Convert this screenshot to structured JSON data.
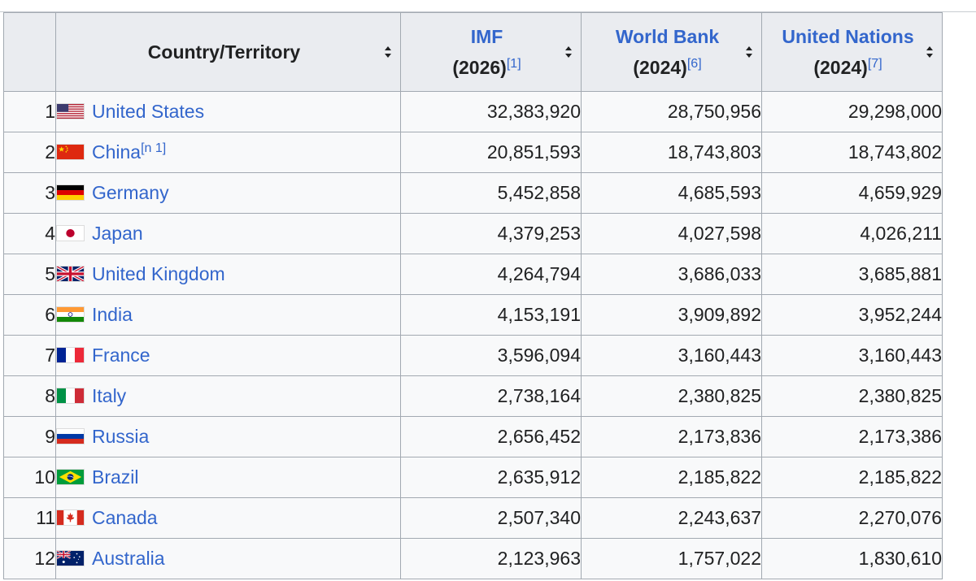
{
  "table": {
    "headers": {
      "country": "Country/Territory",
      "imf": {
        "label": "IMF",
        "year": "(2026)",
        "ref": "[1]"
      },
      "world_bank": {
        "label": "World Bank",
        "year": "(2024)",
        "ref": "[6]"
      },
      "un": {
        "label": "United Nations",
        "year": "(2024)",
        "ref": "[7]"
      }
    },
    "rows": [
      {
        "rank": "1",
        "country": "United States",
        "note": "",
        "flag": "us-flag-icon",
        "imf": "32,383,920",
        "wb": "28,750,956",
        "un": "29,298,000"
      },
      {
        "rank": "2",
        "country": "China",
        "note": "[n 1]",
        "flag": "china-flag-icon",
        "imf": "20,851,593",
        "wb": "18,743,803",
        "un": "18,743,802"
      },
      {
        "rank": "3",
        "country": "Germany",
        "note": "",
        "flag": "germany-flag-icon",
        "imf": "5,452,858",
        "wb": "4,685,593",
        "un": "4,659,929"
      },
      {
        "rank": "4",
        "country": "Japan",
        "note": "",
        "flag": "japan-flag-icon",
        "imf": "4,379,253",
        "wb": "4,027,598",
        "un": "4,026,211"
      },
      {
        "rank": "5",
        "country": "United Kingdom",
        "note": "",
        "flag": "uk-flag-icon",
        "imf": "4,264,794",
        "wb": "3,686,033",
        "un": "3,685,881"
      },
      {
        "rank": "6",
        "country": "India",
        "note": "",
        "flag": "india-flag-icon",
        "imf": "4,153,191",
        "wb": "3,909,892",
        "un": "3,952,244"
      },
      {
        "rank": "7",
        "country": "France",
        "note": "",
        "flag": "france-flag-icon",
        "imf": "3,596,094",
        "wb": "3,160,443",
        "un": "3,160,443"
      },
      {
        "rank": "8",
        "country": "Italy",
        "note": "",
        "flag": "italy-flag-icon",
        "imf": "2,738,164",
        "wb": "2,380,825",
        "un": "2,380,825"
      },
      {
        "rank": "9",
        "country": "Russia",
        "note": "",
        "flag": "russia-flag-icon",
        "imf": "2,656,452",
        "wb": "2,173,836",
        "un": "2,173,386"
      },
      {
        "rank": "10",
        "country": "Brazil",
        "note": "",
        "flag": "brazil-flag-icon",
        "imf": "2,635,912",
        "wb": "2,185,822",
        "un": "2,185,822"
      },
      {
        "rank": "11",
        "country": "Canada",
        "note": "",
        "flag": "canada-flag-icon",
        "imf": "2,507,340",
        "wb": "2,243,637",
        "un": "2,270,076"
      },
      {
        "rank": "12",
        "country": "Australia",
        "note": "",
        "flag": "australia-flag-icon",
        "imf": "2,123,963",
        "wb": "1,757,022",
        "un": "1,830,610"
      }
    ]
  },
  "colors": {
    "link": "#3366cc",
    "header_bg": "#eaecf0",
    "cell_bg": "#f8f9fa",
    "border": "#a2a9b1"
  }
}
